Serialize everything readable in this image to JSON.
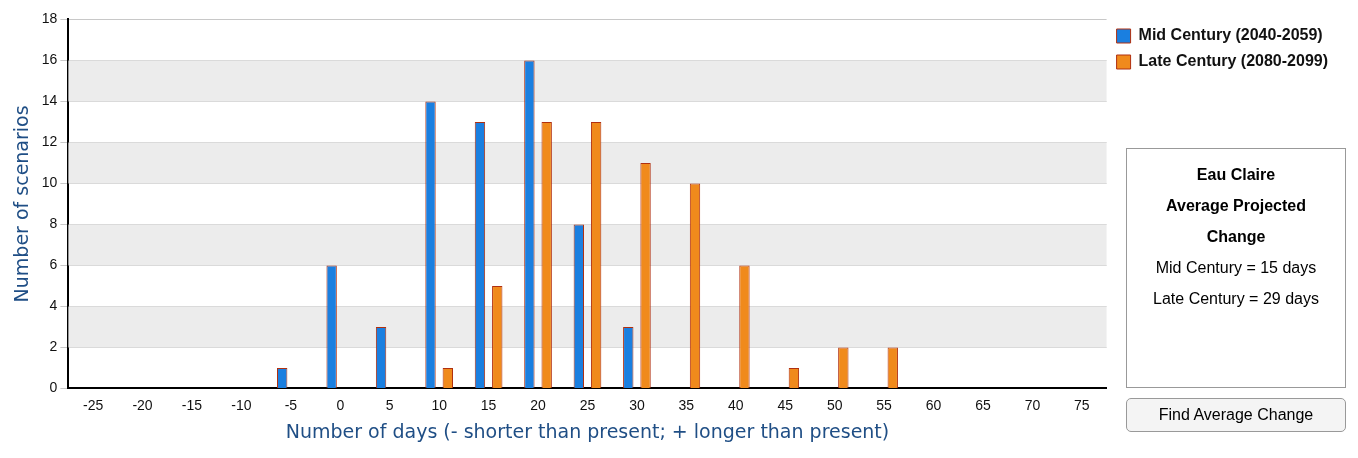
{
  "chart_data": {
    "type": "bar",
    "xlabel": "Number of days (- shorter than present; + longer than present)",
    "ylabel": "Number of scenarios",
    "categories": [
      "-25",
      "-20",
      "-15",
      "-10",
      "-5",
      "0",
      "5",
      "10",
      "15",
      "20",
      "25",
      "30",
      "35",
      "40",
      "45",
      "50",
      "55",
      "60",
      "65",
      "70",
      "75"
    ],
    "series": [
      {
        "name": "Mid Century (2040-2059)",
        "color": "#1a7fe0",
        "values": [
          0,
          0,
          0,
          0,
          1,
          6,
          3,
          14,
          13,
          16,
          8,
          3,
          0,
          0,
          0,
          0,
          0,
          0,
          0,
          0,
          0
        ]
      },
      {
        "name": "Late Century (2080-2099)",
        "color": "#f08a1c",
        "values": [
          0,
          0,
          0,
          0,
          0,
          0,
          0,
          1,
          5,
          13,
          13,
          11,
          10,
          6,
          1,
          2,
          2,
          0,
          0,
          0,
          0
        ]
      }
    ],
    "ylim": [
      0,
      18
    ],
    "yticks": [
      0,
      2,
      4,
      6,
      8,
      10,
      12,
      14,
      16,
      18
    ],
    "grid": "y",
    "legend": "top right",
    "annotations": [
      "Eau Claire",
      "Average Projected",
      "Change",
      "Mid Century = 15 days",
      "Late Century = 29 days",
      "Find Average Change"
    ]
  }
}
